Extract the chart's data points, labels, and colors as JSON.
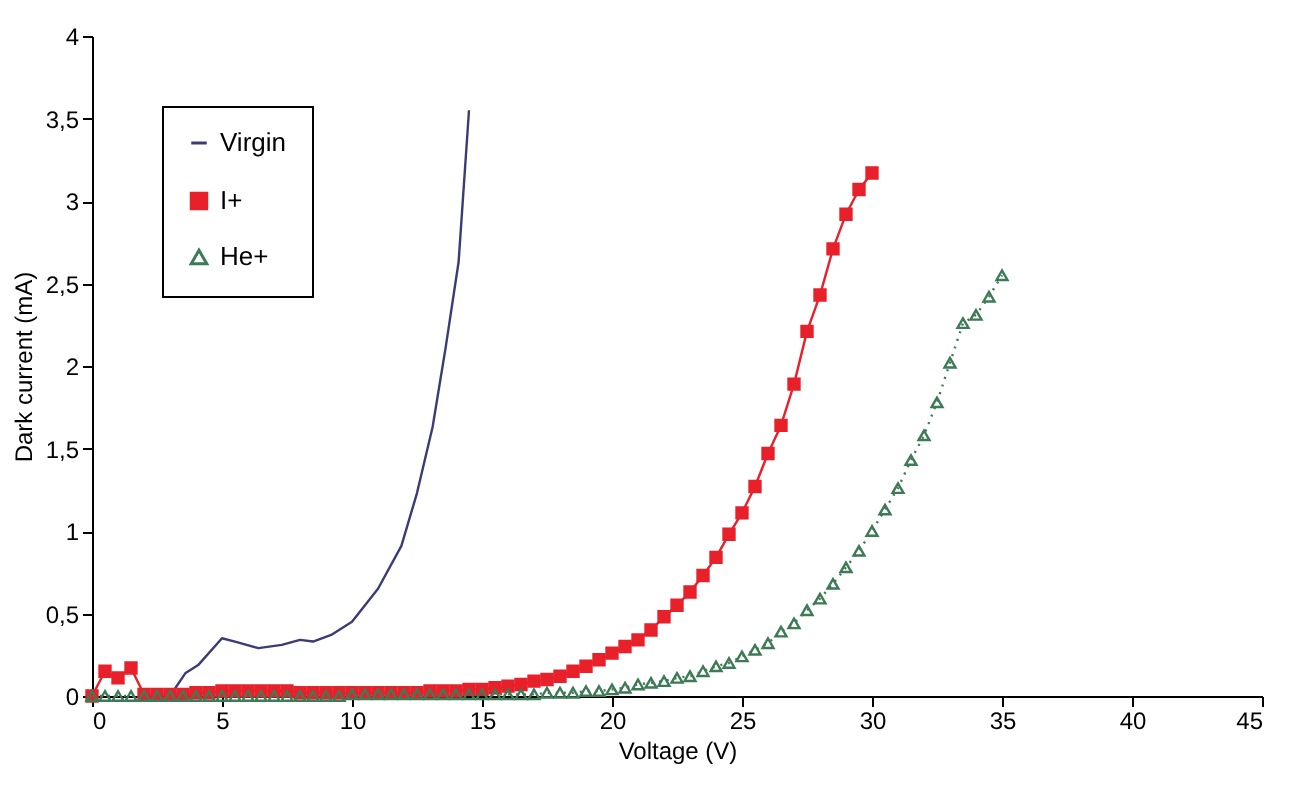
{
  "chart_data": {
    "type": "line",
    "xlabel": "Voltage (V)",
    "ylabel": "Dark current (mA)",
    "xlim": [
      0,
      45
    ],
    "xticks": [
      0,
      5,
      10,
      15,
      20,
      25,
      30,
      35,
      40,
      45
    ],
    "ylim": [
      0,
      4
    ],
    "yticks": [
      0,
      {
        "value": 0.5,
        "label": "0,5"
      },
      1,
      {
        "value": 1.5,
        "label": "1,5"
      },
      2,
      {
        "value": 2.5,
        "label": "2,5"
      },
      3,
      {
        "value": 3.5,
        "label": "3,5"
      },
      4
    ],
    "grid": false,
    "legend": "top left",
    "series": [
      {
        "name": "Virgin",
        "color": "#3b3b78",
        "marker": "none",
        "line_style": "solid",
        "x": [
          3.0,
          3.6,
          4.1,
          5.0,
          5.5,
          6.4,
          7.3,
          8.0,
          8.5,
          9.2,
          10.0,
          11.0,
          11.9,
          12.5,
          13.1,
          13.6,
          14.1,
          14.5
        ],
        "values": [
          0,
          0.14,
          0.19,
          0.35,
          0.33,
          0.29,
          0.31,
          0.34,
          0.33,
          0.37,
          0.45,
          0.65,
          0.91,
          1.23,
          1.63,
          2.11,
          2.63,
          3.55
        ]
      },
      {
        "name": "I+",
        "color": "#e8202a",
        "marker": "square",
        "line_style": "solid",
        "x": [
          0,
          0.5,
          1,
          1.5,
          2,
          2.5,
          3,
          3.5,
          4,
          4.5,
          5,
          5.5,
          6,
          6.5,
          7,
          7.5,
          8,
          8.5,
          9,
          9.5,
          10,
          10.5,
          11,
          11.5,
          12,
          12.5,
          13,
          13.5,
          14,
          14.5,
          15,
          15.5,
          16,
          16.5,
          17,
          17.5,
          18,
          18.5,
          19,
          19.5,
          20,
          20.5,
          21,
          21.5,
          22,
          22.5,
          23,
          23.5,
          24,
          24.5,
          25,
          25.5,
          26,
          26.5,
          27,
          27.5,
          28,
          28.5,
          29,
          29.5,
          30
        ],
        "values": [
          0,
          0.15,
          0.11,
          0.17,
          0.01,
          0.01,
          0.01,
          0.01,
          0.02,
          0.02,
          0.03,
          0.03,
          0.03,
          0.03,
          0.03,
          0.03,
          0.02,
          0.02,
          0.02,
          0.02,
          0.02,
          0.02,
          0.02,
          0.02,
          0.02,
          0.02,
          0.03,
          0.03,
          0.03,
          0.04,
          0.04,
          0.05,
          0.06,
          0.07,
          0.09,
          0.1,
          0.12,
          0.15,
          0.18,
          0.22,
          0.26,
          0.3,
          0.34,
          0.4,
          0.48,
          0.55,
          0.63,
          0.73,
          0.84,
          0.98,
          1.11,
          1.27,
          1.47,
          1.64,
          1.89,
          2.21,
          2.43,
          2.71,
          2.92,
          3.07,
          3.17
        ]
      },
      {
        "name": "He+",
        "color": "#3d7a55",
        "marker": "triangle",
        "line_style": "dotted",
        "x": [
          0,
          0.5,
          1,
          1.5,
          2,
          2.5,
          3,
          3.5,
          4,
          4.5,
          5,
          5.5,
          6,
          6.5,
          7,
          7.5,
          8,
          8.5,
          9,
          9.5,
          10,
          10.5,
          11,
          11.5,
          12,
          12.5,
          13,
          13.5,
          14,
          14.5,
          15,
          15.5,
          16,
          16.5,
          17,
          17.5,
          18,
          18.5,
          19,
          19.5,
          20,
          20.5,
          21,
          21.5,
          22,
          22.5,
          23,
          23.5,
          24,
          24.5,
          25,
          25.5,
          26,
          26.5,
          27,
          27.5,
          28,
          28.5,
          29,
          29.5,
          30,
          30.5,
          31,
          31.5,
          32,
          32.5,
          33,
          33.5,
          34,
          34.5,
          35
        ],
        "values": [
          0,
          0,
          0,
          0,
          0,
          0,
          0,
          0,
          0,
          0,
          0,
          0,
          0,
          0,
          0,
          0,
          0,
          0,
          0,
          0,
          0.01,
          0.01,
          0.01,
          0.01,
          0.01,
          0.01,
          0.01,
          0.01,
          0.01,
          0.01,
          0.01,
          0.01,
          0.01,
          0.01,
          0.01,
          0.02,
          0.02,
          0.02,
          0.03,
          0.03,
          0.04,
          0.05,
          0.07,
          0.08,
          0.09,
          0.11,
          0.12,
          0.15,
          0.18,
          0.2,
          0.24,
          0.28,
          0.32,
          0.39,
          0.44,
          0.52,
          0.59,
          0.68,
          0.78,
          0.88,
          1.0,
          1.13,
          1.26,
          1.43,
          1.58,
          1.78,
          2.02,
          2.26,
          2.31,
          2.42,
          2.55
        ]
      }
    ]
  }
}
